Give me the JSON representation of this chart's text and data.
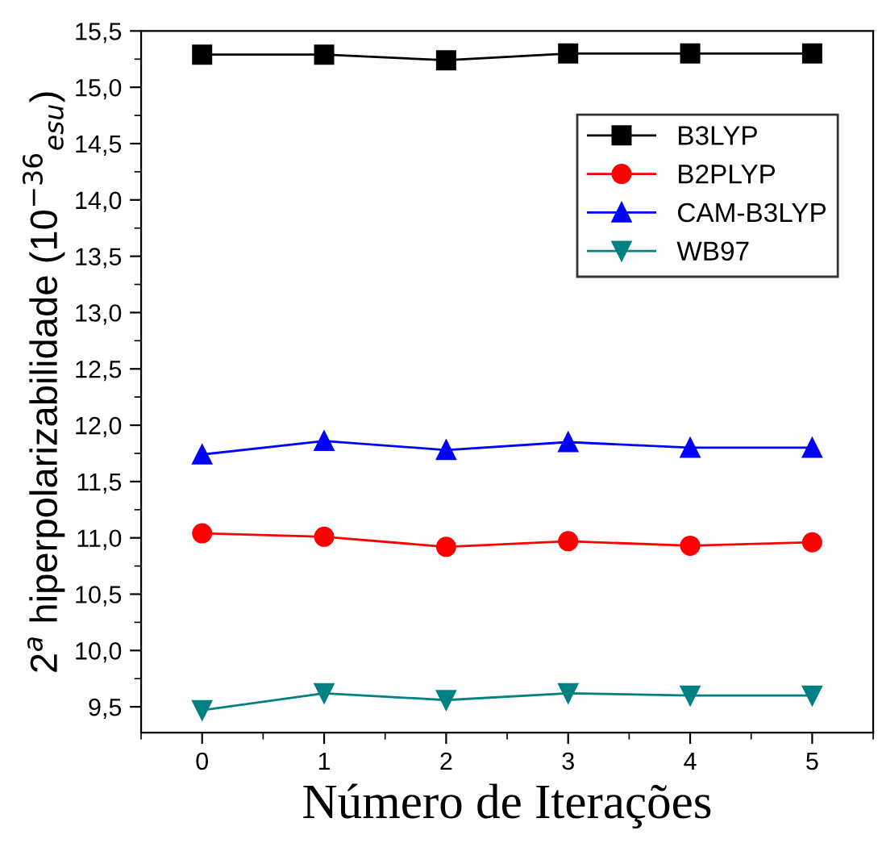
{
  "chart_data": {
    "type": "line",
    "xlabel": "Número de Iterações",
    "ylabel": "2$^{a}$ hiperpolarizabilidade (10$^{−36}$$_{esu}$)",
    "x": [
      0,
      1,
      2,
      3,
      4,
      5
    ],
    "series": [
      {
        "name": "B3LYP",
        "color": "#000000",
        "marker": "square",
        "values": [
          15.29,
          15.29,
          15.24,
          15.3,
          15.3,
          15.3
        ]
      },
      {
        "name": "B2PLYP",
        "color": "#ff0000",
        "marker": "circle",
        "values": [
          11.04,
          11.01,
          10.92,
          10.97,
          10.93,
          10.96
        ]
      },
      {
        "name": "CAM-B3LYP",
        "color": "#0000ff",
        "marker": "triangle",
        "values": [
          11.74,
          11.86,
          11.78,
          11.85,
          11.8,
          11.8
        ]
      },
      {
        "name": "WB97",
        "color": "#008080",
        "marker": "triangle_down",
        "values": [
          9.47,
          9.62,
          9.56,
          9.62,
          9.6,
          9.6
        ]
      }
    ],
    "xlim": [
      -0.5,
      5.5
    ],
    "xticks": [
      0,
      1,
      2,
      3,
      4,
      5
    ],
    "ylim": [
      9.27,
      15.5
    ],
    "yticks": [
      {
        "value": 9.5,
        "label": "9,5"
      },
      {
        "value": 10,
        "label": "10,0"
      },
      {
        "value": 10.5,
        "label": "10,5"
      },
      {
        "value": 11,
        "label": "11,0"
      },
      {
        "value": 11.5,
        "label": "11,5"
      },
      {
        "value": 12,
        "label": "12,0"
      },
      {
        "value": 12.5,
        "label": "12,5"
      },
      {
        "value": 13,
        "label": "13,0"
      },
      {
        "value": 13.5,
        "label": "13,5"
      },
      {
        "value": 14,
        "label": "14,0"
      },
      {
        "value": 14.5,
        "label": "14,5"
      },
      {
        "value": 15,
        "label": "15,0"
      },
      {
        "value": 15.5,
        "label": "15,5"
      }
    ],
    "grid": false,
    "legend": "top right",
    "line_style": "solid"
  }
}
